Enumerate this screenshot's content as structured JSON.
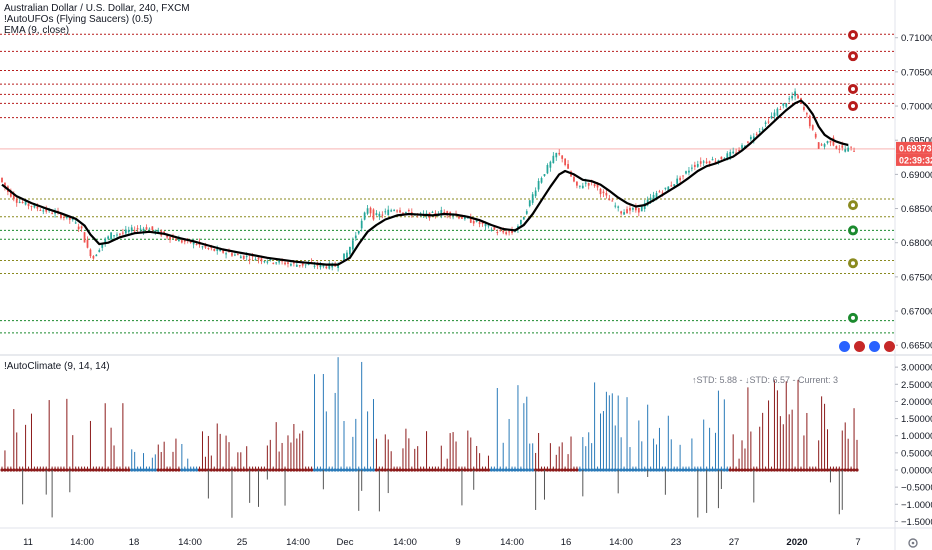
{
  "header": {
    "symbol_line": "Australian Dollar / U.S. Dollar, 240, FXCM",
    "indicator1": "!AutoUFOs (Flying Saucers) (0.5)",
    "indicator2": "EMA (9, close)"
  },
  "sub_header": {
    "indicator": "!AutoClimate (9, 14, 14)",
    "stats": "↑STD: 5.88 - ↓STD: 6.57 - Current: 3"
  },
  "price_badges": {
    "last_price": "0.69373",
    "countdown": "02:39:32"
  },
  "colors": {
    "up": "#26a69a",
    "down": "#ef5350",
    "ema": "#000000",
    "resistance": "#b71c1c",
    "support_green": "#1b8a2e",
    "support_olive": "#8a8a1f",
    "climate_blue": "#2a7ab8",
    "climate_red": "#8b1a1a",
    "last_price_bg": "#ef5350",
    "countdown_bg": "#ef5350"
  },
  "chart_data": [
    {
      "type": "candlestick",
      "title": "Australian Dollar / U.S. Dollar, 240, FXCM",
      "y_ticks": [
        "0.71000",
        "0.70500",
        "0.70000",
        "0.69500",
        "0.69000",
        "0.68500",
        "0.68000",
        "0.67500",
        "0.67000",
        "0.66500"
      ],
      "ylim": [
        0.6643,
        0.7123
      ],
      "x_tick_labels": [
        "11",
        "14:00",
        "18",
        "14:00",
        "25",
        "14:00",
        "Dec",
        "14:00",
        "9",
        "14:00",
        "16",
        "14:00",
        "23",
        "27",
        "2020",
        "7"
      ],
      "horizontal_levels": [
        {
          "price": 0.7105,
          "kind": "resistance"
        },
        {
          "price": 0.708,
          "kind": "resistance"
        },
        {
          "price": 0.7052,
          "kind": "resistance"
        },
        {
          "price": 0.7032,
          "kind": "resistance"
        },
        {
          "price": 0.7017,
          "kind": "resistance"
        },
        {
          "price": 0.7004,
          "kind": "resistance"
        },
        {
          "price": 0.6983,
          "kind": "resistance"
        },
        {
          "price": 0.6864,
          "kind": "support_olive"
        },
        {
          "price": 0.6838,
          "kind": "support_olive"
        },
        {
          "price": 0.6818,
          "kind": "support_green"
        },
        {
          "price": 0.6805,
          "kind": "support_green"
        },
        {
          "price": 0.6774,
          "kind": "support_olive"
        },
        {
          "price": 0.6755,
          "kind": "support_olive"
        },
        {
          "price": 0.6686,
          "kind": "support_green"
        },
        {
          "price": 0.6668,
          "kind": "support_green"
        }
      ],
      "level_markers": [
        {
          "price": 0.7104,
          "kind": "resistance"
        },
        {
          "price": 0.7073,
          "kind": "resistance"
        },
        {
          "price": 0.7025,
          "kind": "resistance"
        },
        {
          "price": 0.7,
          "kind": "resistance"
        },
        {
          "price": 0.6855,
          "kind": "support_olive"
        },
        {
          "price": 0.6818,
          "kind": "support_green"
        },
        {
          "price": 0.677,
          "kind": "support_olive"
        },
        {
          "price": 0.669,
          "kind": "support_green"
        }
      ],
      "price_path": [
        [
          0,
          0.6895
        ],
        [
          3,
          0.6875
        ],
        [
          6,
          0.6862
        ],
        [
          10,
          0.6855
        ],
        [
          15,
          0.6848
        ],
        [
          20,
          0.6842
        ],
        [
          25,
          0.6832
        ],
        [
          28,
          0.6818
        ],
        [
          30,
          0.679
        ],
        [
          32,
          0.6778
        ],
        [
          35,
          0.68
        ],
        [
          38,
          0.6812
        ],
        [
          42,
          0.6814
        ],
        [
          46,
          0.682
        ],
        [
          50,
          0.6822
        ],
        [
          54,
          0.6815
        ],
        [
          58,
          0.6808
        ],
        [
          62,
          0.6802
        ],
        [
          66,
          0.68
        ],
        [
          70,
          0.6792
        ],
        [
          74,
          0.6788
        ],
        [
          78,
          0.6785
        ],
        [
          82,
          0.678
        ],
        [
          86,
          0.6778
        ],
        [
          90,
          0.6775
        ],
        [
          95,
          0.6772
        ],
        [
          100,
          0.6768
        ],
        [
          105,
          0.6768
        ],
        [
          110,
          0.6766
        ],
        [
          114,
          0.6766
        ],
        [
          118,
          0.6785
        ],
        [
          121,
          0.6812
        ],
        [
          123,
          0.683
        ],
        [
          125,
          0.6852
        ],
        [
          127,
          0.6838
        ],
        [
          130,
          0.6842
        ],
        [
          134,
          0.685
        ],
        [
          138,
          0.6845
        ],
        [
          142,
          0.684
        ],
        [
          146,
          0.684
        ],
        [
          150,
          0.6845
        ],
        [
          154,
          0.6842
        ],
        [
          158,
          0.6835
        ],
        [
          162,
          0.683
        ],
        [
          166,
          0.6822
        ],
        [
          170,
          0.6815
        ],
        [
          174,
          0.6815
        ],
        [
          177,
          0.683
        ],
        [
          180,
          0.686
        ],
        [
          183,
          0.689
        ],
        [
          186,
          0.691
        ],
        [
          189,
          0.693
        ],
        [
          191,
          0.6925
        ],
        [
          193,
          0.6905
        ],
        [
          196,
          0.688
        ],
        [
          199,
          0.6888
        ],
        [
          202,
          0.6885
        ],
        [
          205,
          0.687
        ],
        [
          208,
          0.6858
        ],
        [
          211,
          0.6845
        ],
        [
          214,
          0.6848
        ],
        [
          217,
          0.6848
        ],
        [
          220,
          0.686
        ],
        [
          223,
          0.6872
        ],
        [
          226,
          0.6878
        ],
        [
          229,
          0.6888
        ],
        [
          232,
          0.6898
        ],
        [
          235,
          0.6912
        ],
        [
          238,
          0.6918
        ],
        [
          241,
          0.692
        ],
        [
          244,
          0.6922
        ],
        [
          247,
          0.6928
        ],
        [
          250,
          0.6932
        ],
        [
          253,
          0.6945
        ],
        [
          256,
          0.6958
        ],
        [
          259,
          0.697
        ],
        [
          262,
          0.6985
        ],
        [
          265,
          0.6998
        ],
        [
          268,
          0.701
        ],
        [
          270,
          0.7018
        ],
        [
          272,
          0.7002
        ],
        [
          274,
          0.6985
        ],
        [
          276,
          0.6962
        ],
        [
          278,
          0.694
        ],
        [
          280,
          0.6945
        ],
        [
          282,
          0.695
        ],
        [
          284,
          0.694
        ],
        [
          286,
          0.6937
        ]
      ],
      "ema_path": [
        [
          0,
          0.6885
        ],
        [
          5,
          0.6868
        ],
        [
          10,
          0.6858
        ],
        [
          15,
          0.685
        ],
        [
          20,
          0.6843
        ],
        [
          25,
          0.6835
        ],
        [
          28,
          0.6825
        ],
        [
          30,
          0.6812
        ],
        [
          33,
          0.6798
        ],
        [
          36,
          0.68
        ],
        [
          40,
          0.6808
        ],
        [
          45,
          0.6814
        ],
        [
          50,
          0.6816
        ],
        [
          55,
          0.6813
        ],
        [
          60,
          0.6807
        ],
        [
          65,
          0.6802
        ],
        [
          70,
          0.6796
        ],
        [
          75,
          0.679
        ],
        [
          80,
          0.6786
        ],
        [
          85,
          0.6782
        ],
        [
          90,
          0.6778
        ],
        [
          95,
          0.6775
        ],
        [
          100,
          0.6772
        ],
        [
          105,
          0.677
        ],
        [
          110,
          0.6768
        ],
        [
          114,
          0.6768
        ],
        [
          118,
          0.6778
        ],
        [
          121,
          0.6798
        ],
        [
          124,
          0.6816
        ],
        [
          127,
          0.6826
        ],
        [
          130,
          0.6834
        ],
        [
          134,
          0.684
        ],
        [
          138,
          0.6842
        ],
        [
          142,
          0.6841
        ],
        [
          146,
          0.684
        ],
        [
          150,
          0.6842
        ],
        [
          154,
          0.6841
        ],
        [
          158,
          0.6838
        ],
        [
          162,
          0.6833
        ],
        [
          166,
          0.6826
        ],
        [
          170,
          0.682
        ],
        [
          174,
          0.6818
        ],
        [
          177,
          0.6826
        ],
        [
          180,
          0.6842
        ],
        [
          183,
          0.6862
        ],
        [
          186,
          0.6882
        ],
        [
          189,
          0.69
        ],
        [
          191,
          0.6905
        ],
        [
          194,
          0.69
        ],
        [
          197,
          0.6892
        ],
        [
          200,
          0.689
        ],
        [
          203,
          0.6885
        ],
        [
          206,
          0.6876
        ],
        [
          209,
          0.6866
        ],
        [
          212,
          0.6858
        ],
        [
          215,
          0.6853
        ],
        [
          218,
          0.6855
        ],
        [
          221,
          0.6862
        ],
        [
          224,
          0.687
        ],
        [
          227,
          0.6878
        ],
        [
          230,
          0.6886
        ],
        [
          233,
          0.6895
        ],
        [
          236,
          0.6905
        ],
        [
          239,
          0.6912
        ],
        [
          242,
          0.6916
        ],
        [
          245,
          0.6921
        ],
        [
          248,
          0.6926
        ],
        [
          251,
          0.6935
        ],
        [
          254,
          0.6946
        ],
        [
          257,
          0.6958
        ],
        [
          260,
          0.697
        ],
        [
          263,
          0.6982
        ],
        [
          266,
          0.6994
        ],
        [
          269,
          0.7004
        ],
        [
          271,
          0.7008
        ],
        [
          273,
          0.7
        ],
        [
          275,
          0.6988
        ],
        [
          277,
          0.697
        ],
        [
          279,
          0.6958
        ],
        [
          281,
          0.6952
        ],
        [
          283,
          0.6948
        ],
        [
          285,
          0.6945
        ],
        [
          287,
          0.6943
        ]
      ]
    },
    {
      "type": "bar",
      "title": "!AutoClimate (9, 14, 14)",
      "y_ticks": [
        "3.00000",
        "2.50000",
        "2.00000",
        "1.50000",
        "1.00000",
        "0.50000",
        "0.00000",
        "−0.50000",
        "−1.00000",
        "−1.50000"
      ],
      "ylim": [
        -1.75,
        3.15
      ],
      "annotation": "↑STD: 5.88 - ↓STD: 6.57 - Current: 3",
      "segments": [
        {
          "from": 0,
          "to": 43,
          "regime": "down",
          "peak": 1.9
        },
        {
          "from": 44,
          "to": 52,
          "regime": "up",
          "peak": 0.6
        },
        {
          "from": 53,
          "to": 60,
          "regime": "down",
          "peak": 1.3
        },
        {
          "from": 61,
          "to": 66,
          "regime": "up",
          "peak": 0.7
        },
        {
          "from": 67,
          "to": 105,
          "regime": "down",
          "peak": 1.2
        },
        {
          "from": 106,
          "to": 126,
          "regime": "up",
          "peak": 2.8
        },
        {
          "from": 127,
          "to": 165,
          "regime": "down",
          "peak": 1.1
        },
        {
          "from": 166,
          "to": 180,
          "regime": "up",
          "peak": 2.3
        },
        {
          "from": 181,
          "to": 195,
          "regime": "down",
          "peak": 1.2
        },
        {
          "from": 196,
          "to": 246,
          "regime": "up",
          "peak": 2.2
        },
        {
          "from": 247,
          "to": 252,
          "regime": "down",
          "peak": 1.1
        },
        {
          "from": 253,
          "to": 290,
          "regime": "down",
          "peak": 2.6
        }
      ]
    }
  ]
}
